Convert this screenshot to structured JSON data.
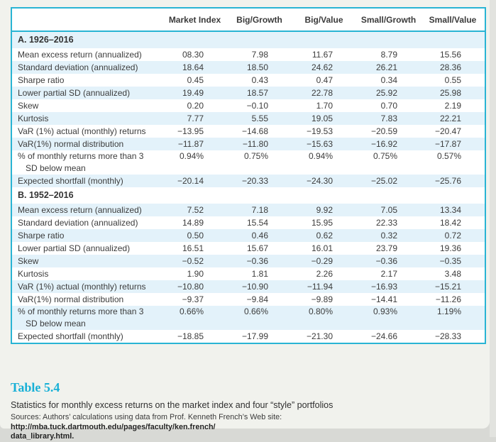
{
  "colors": {
    "accent_teal": "#29b4d4",
    "stripe_blue": "#e3f2fa",
    "table_number_cyan": "#17b0d6",
    "text_dark": "#3c3c3c"
  },
  "table": {
    "columns": [
      "Market Index",
      "Big/Growth",
      "Big/Value",
      "Small/Growth",
      "Small/Value"
    ],
    "panels": [
      {
        "label": "A. 1926–2016",
        "rows": [
          {
            "label": "Mean excess return (annualized)",
            "values": [
              "08.30",
              "7.98",
              "11.67",
              "8.79",
              "15.56"
            ]
          },
          {
            "label": "Standard deviation (annualized)",
            "values": [
              "18.64",
              "18.50",
              "24.62",
              "26.21",
              "28.36"
            ]
          },
          {
            "label": "Sharpe ratio",
            "values": [
              "0.45",
              "0.43",
              "0.47",
              "0.34",
              "0.55"
            ]
          },
          {
            "label": "Lower partial SD (annualized)",
            "values": [
              "19.49",
              "18.57",
              "22.78",
              "25.92",
              "25.98"
            ]
          },
          {
            "label": "Skew",
            "values": [
              "0.20",
              "−0.10",
              "1.70",
              "0.70",
              "2.19"
            ]
          },
          {
            "label": "Kurtosis",
            "values": [
              "7.77",
              "5.55",
              "19.05",
              "7.83",
              "22.21"
            ]
          },
          {
            "label": "VaR (1%) actual (monthly) returns",
            "values": [
              "−13.95",
              "−14.68",
              "−19.53",
              "−20.59",
              "−20.47"
            ]
          },
          {
            "label": "VaR(1%) normal distribution",
            "values": [
              "−11.87",
              "−11.80",
              "−15.63",
              "−16.92",
              "−17.87"
            ]
          },
          {
            "label": "% of monthly returns more than 3",
            "label_line2": "SD below mean",
            "values": [
              "0.94%",
              "0.75%",
              "0.94%",
              "0.75%",
              "0.57%"
            ]
          },
          {
            "label": "Expected shortfall (monthly)",
            "values": [
              "−20.14",
              "−20.33",
              "−24.30",
              "−25.02",
              "−25.76"
            ]
          }
        ]
      },
      {
        "label": "B. 1952–2016",
        "rows": [
          {
            "label": "Mean excess return (annualized)",
            "values": [
              "7.52",
              "7.18",
              "9.92",
              "7.05",
              "13.34"
            ]
          },
          {
            "label": "Standard deviation (annualized)",
            "values": [
              "14.89",
              "15.54",
              "15.95",
              "22.33",
              "18.42"
            ]
          },
          {
            "label": "Sharpe ratio",
            "values": [
              "0.50",
              "0.46",
              "0.62",
              "0.32",
              "0.72"
            ]
          },
          {
            "label": "Lower partial SD (annualized)",
            "values": [
              "16.51",
              "15.67",
              "16.01",
              "23.79",
              "19.36"
            ]
          },
          {
            "label": "Skew",
            "values": [
              "−0.52",
              "−0.36",
              "−0.29",
              "−0.36",
              "−0.35"
            ]
          },
          {
            "label": "Kurtosis",
            "values": [
              "1.90",
              "1.81",
              "2.26",
              "2.17",
              "3.48"
            ]
          },
          {
            "label": "VaR (1%) actual (monthly) returns",
            "values": [
              "−10.80",
              "−10.90",
              "−11.94",
              "−16.93",
              "−15.21"
            ]
          },
          {
            "label": "VaR(1%) normal distribution",
            "values": [
              "−9.37",
              "−9.84",
              "−9.89",
              "−14.41",
              "−11.26"
            ]
          },
          {
            "label": "% of monthly returns more than 3",
            "label_line2": "SD below mean",
            "values": [
              "0.66%",
              "0.66%",
              "0.80%",
              "0.93%",
              "1.19%"
            ]
          },
          {
            "label": "Expected shortfall (monthly)",
            "values": [
              "−18.85",
              "−17.99",
              "−21.30",
              "−24.66",
              "−28.33"
            ]
          }
        ]
      }
    ]
  },
  "caption": {
    "table_number": "Table 5.4",
    "title": "Statistics for monthly excess returns on the market index and four “style” portfolios",
    "sources_prefix": "Sources: Authors’ calculations using data from Prof. Kenneth French’s Web site: ",
    "sources_url_line1": "http://mba.tuck.dartmouth.edu/pages/faculty/ken.french/",
    "sources_url_line2": "data_library.html."
  }
}
